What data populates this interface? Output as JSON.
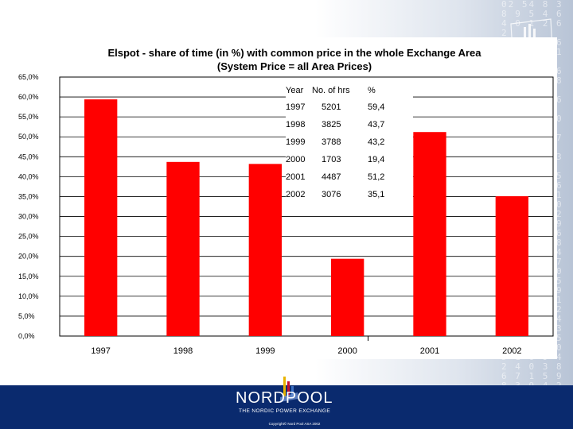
{
  "chart_data": {
    "type": "bar",
    "title_lines": [
      "Elspot - share of time (in %) with common price in the whole Exchange Area",
      "(System Price = all Area Prices)"
    ],
    "categories": [
      "1997",
      "1998",
      "1999",
      "2000",
      "2001",
      "2002"
    ],
    "values": [
      59.4,
      43.7,
      43.2,
      19.4,
      51.2,
      35.1
    ],
    "bar_color": "#ff0000",
    "ylim": [
      0,
      65
    ],
    "yticks": [
      "65,0%",
      "60,0%",
      "55,0%",
      "50,0%",
      "45,0%",
      "40,0%",
      "35,0%",
      "30,0%",
      "25,0%",
      "20,0%",
      "15,0%",
      "10,0%",
      "5,0%",
      "0,0%"
    ],
    "grid": true,
    "xlabel": "",
    "ylabel": ""
  },
  "table": {
    "headers": [
      "Year",
      "No. of hrs",
      "%"
    ],
    "rows": [
      [
        "1997",
        "5201",
        "59,4"
      ],
      [
        "1998",
        "3825",
        "43,7"
      ],
      [
        "1999",
        "3788",
        "43,2"
      ],
      [
        "2000",
        "1703",
        "19,4"
      ],
      [
        "2001",
        "4487",
        "51,2"
      ],
      [
        "2002",
        "3076",
        "35,1"
      ]
    ]
  },
  "footer": {
    "brand": "NORDPOOL",
    "tagline": "THE NORDIC POWER EXCHANGE",
    "copyright": "Copyright© Nord Pool ASA 2002",
    "bg_color": "#0a2a6e"
  }
}
